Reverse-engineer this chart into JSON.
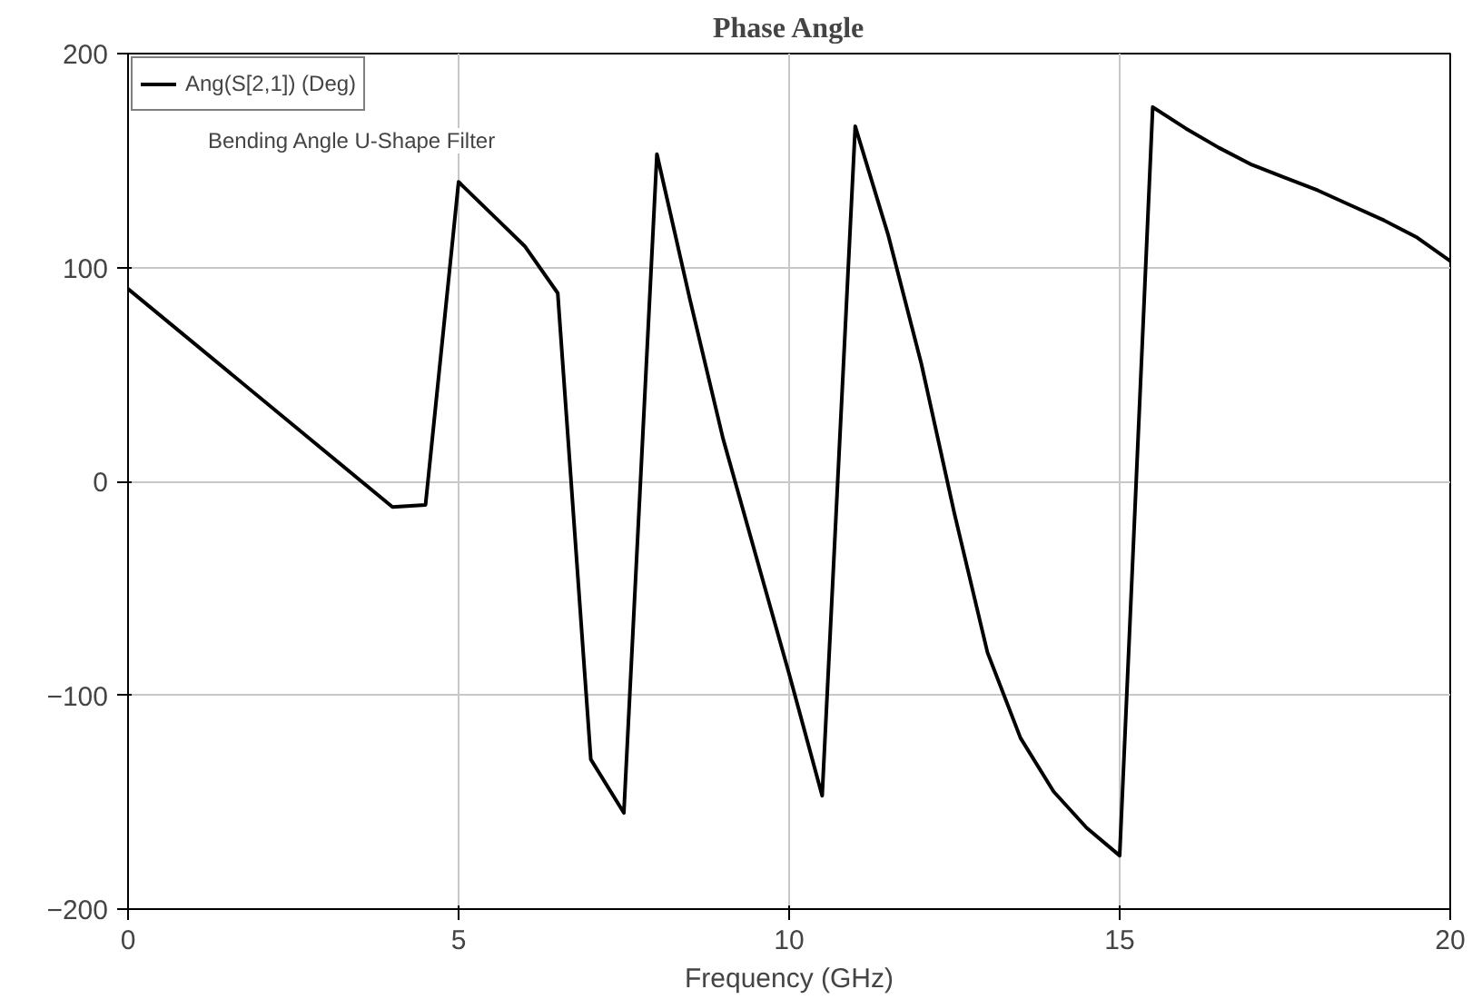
{
  "chart_data": {
    "type": "line",
    "title": "Phase Angle",
    "xlabel": "Frequency (GHz)",
    "x": [
      0,
      4,
      4.5,
      5,
      5.5,
      6,
      6.5,
      7,
      7.5,
      8,
      8.5,
      9,
      9.5,
      10,
      10.5,
      11,
      11.5,
      12,
      12.5,
      13,
      13.5,
      14,
      14.5,
      15,
      15.5,
      16,
      16.5,
      17,
      17.5,
      18,
      18.5,
      19,
      19.5,
      20
    ],
    "series": [
      {
        "name": "Ang(S[2,1]) (Deg)",
        "color": "#000000",
        "values": [
          90,
          -12,
          -11,
          140,
          125,
          110,
          88,
          -130,
          -155,
          153,
          85,
          20,
          -35,
          -90,
          -147,
          166,
          115,
          55,
          -15,
          -80,
          -120,
          -145,
          -162,
          -175,
          175,
          165,
          156,
          148,
          142,
          136,
          129,
          122,
          114,
          103
        ]
      }
    ],
    "annotations": [
      "Bending Angle U-Shape Filter"
    ],
    "xlim": [
      0,
      20
    ],
    "ylim": [
      -200,
      200
    ],
    "xticks": [
      0,
      5,
      10,
      15,
      20
    ],
    "yticks": [
      -200,
      -100,
      0,
      100,
      200
    ],
    "grid": true,
    "legend": "top left",
    "line_style": "solid",
    "marker": "none"
  }
}
